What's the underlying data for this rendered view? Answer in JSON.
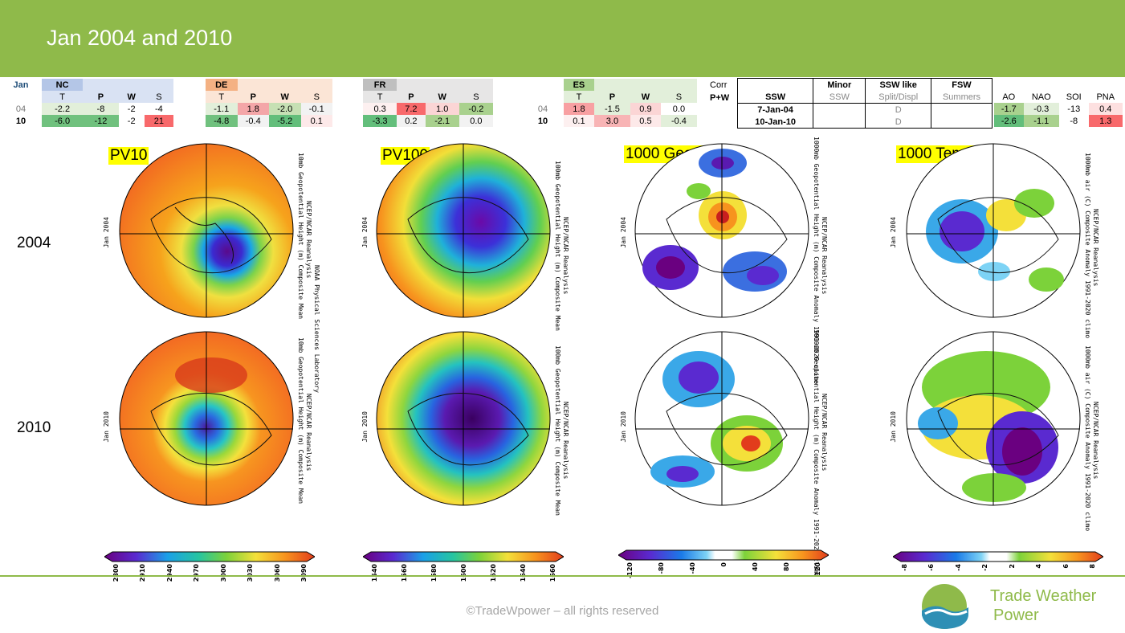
{
  "title": "Jan 2004 and 2010",
  "month_label": "Jan",
  "regions": [
    {
      "name": "NC",
      "cols": [
        "T",
        "P",
        "W",
        "S"
      ],
      "rows": [
        [
          "-2.2",
          "-8",
          "-2",
          "-4"
        ],
        [
          "-6.0",
          "-12",
          "-2",
          "21"
        ]
      ]
    },
    {
      "name": "DE",
      "cols": [
        "T",
        "P",
        "W",
        "S"
      ],
      "rows": [
        [
          "-1.1",
          "1.8",
          "-2.0",
          "-0.1"
        ],
        [
          "-4.8",
          "-0.4",
          "-5.2",
          "0.1"
        ]
      ]
    },
    {
      "name": "FR",
      "cols": [
        "T",
        "P",
        "W",
        "S"
      ],
      "rows": [
        [
          "0.3",
          "7.2",
          "1.0",
          "-0.2"
        ],
        [
          "-3.3",
          "0.2",
          "-2.1",
          "0.0"
        ]
      ]
    },
    {
      "name": "ES",
      "cols": [
        "T",
        "P",
        "W",
        "S"
      ],
      "rows": [
        [
          "1.8",
          "-1.5",
          "0.9",
          "0.0"
        ],
        [
          "0.1",
          "3.0",
          "0.5",
          "-0.4"
        ]
      ]
    }
  ],
  "row_labels": [
    "04",
    "10"
  ],
  "corr": {
    "label1": "Corr",
    "label2": "P+W"
  },
  "ssw": {
    "headers": [
      "SSW",
      "Minor",
      "SSW like",
      "FSW"
    ],
    "subheaders": [
      "SSW",
      "SSW",
      "Split/Displ",
      "Summers"
    ],
    "rows": [
      [
        "7-Jan-04",
        "",
        "D",
        ""
      ],
      [
        "10-Jan-10",
        "",
        "D",
        ""
      ]
    ]
  },
  "indices": {
    "headers": [
      "AO",
      "NAO",
      "SOI",
      "PNA"
    ],
    "rows": [
      [
        "-1.7",
        "-0.3",
        "-13",
        "0.4"
      ],
      [
        "-2.6",
        "-1.1",
        "-8",
        "1.3"
      ]
    ]
  },
  "panels": {
    "pv10": "PV10",
    "pv100": "PV100",
    "geopot": "1000 Geopot",
    "temp": "1000 Temp"
  },
  "years": [
    "2004",
    "2010"
  ],
  "map_dates": [
    "Jan 2004",
    "Jan 2010"
  ],
  "map_titles": {
    "pv10": "10mb Geopotential Height (m) Composite Mean",
    "pv100": "100mb Geopotential Height (m) Composite Mean",
    "geopot": "1000mb Geopotential Height (m) Composite Anomaly 1991-2020 climo",
    "temp": "1000mb air (C) Composite Anomaly 1991-2020 climo",
    "source": "NCEP/NCAR Reanalysis",
    "lab": "NOAA Physical Sciences Laboratory"
  },
  "colorbars": {
    "pv10": [
      "2800",
      "2910",
      "2940",
      "2970",
      "3000",
      "3030",
      "3060",
      "3090"
    ],
    "pv100": [
      "1540",
      "1560",
      "1580",
      "1600",
      "1620",
      "1640",
      "1660"
    ],
    "geopot": [
      "-120",
      "-80",
      "-40",
      "0",
      "40",
      "80",
      "120"
    ],
    "temp": [
      "-8",
      "-6",
      "-4",
      "-2",
      "2",
      "4",
      "6",
      "8"
    ]
  },
  "footer": "©TradeWpower – all rights reserved",
  "brand_line1": "Trade Weather",
  "brand_line2": "Power",
  "colors": {
    "banner": "#8fba4a",
    "brand": "#8fba4a"
  }
}
